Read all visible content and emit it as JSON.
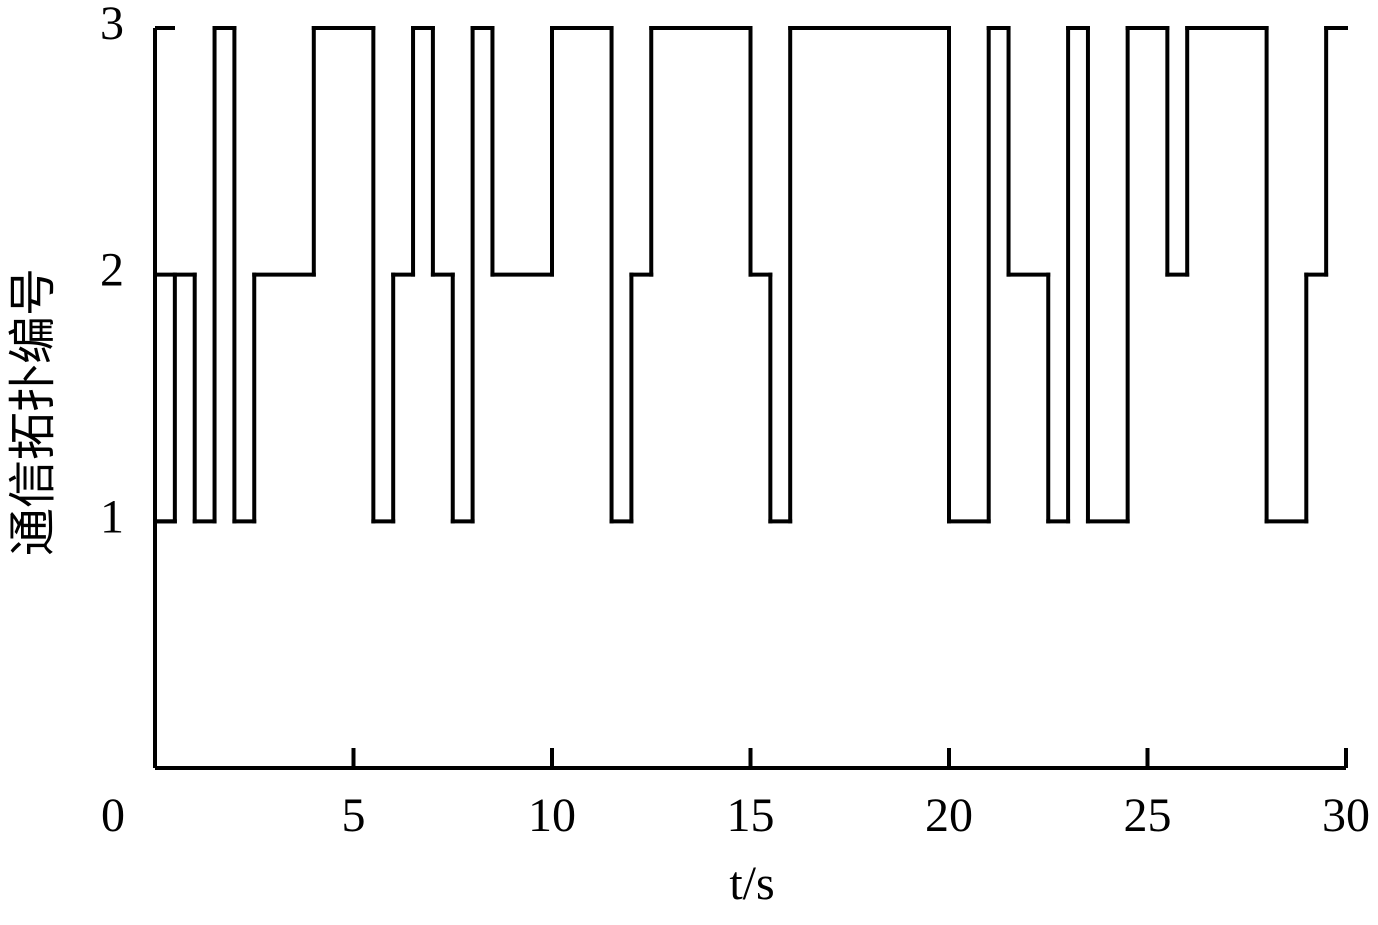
{
  "chart_data": {
    "type": "line",
    "step": "post",
    "x_label": "t/s",
    "y_label": "通信拓扑编号",
    "x": [
      0,
      0.5,
      1,
      1.5,
      2,
      2.5,
      4,
      5.5,
      6,
      6.5,
      7,
      7.5,
      8,
      8.5,
      10,
      11.5,
      12,
      12.5,
      15,
      15.5,
      16,
      20,
      21,
      21.5,
      22.5,
      23,
      23.5,
      24.5,
      25.5,
      26,
      28,
      29,
      29.5,
      30
    ],
    "series": [
      {
        "color": "#000000",
        "values": [
          1,
          2,
          1,
          3,
          1,
          2,
          3,
          1,
          2,
          3,
          2,
          1,
          3,
          2,
          3,
          1,
          2,
          3,
          2,
          1,
          3,
          1,
          3,
          2,
          1,
          3,
          1,
          3,
          2,
          3,
          1,
          2,
          3,
          3
        ]
      }
    ],
    "xlim": [
      0,
      30
    ],
    "xticks": [
      0,
      5,
      10,
      15,
      20,
      25,
      30
    ],
    "ylim": [
      0,
      3
    ],
    "yticks": [
      1,
      2,
      3
    ]
  }
}
